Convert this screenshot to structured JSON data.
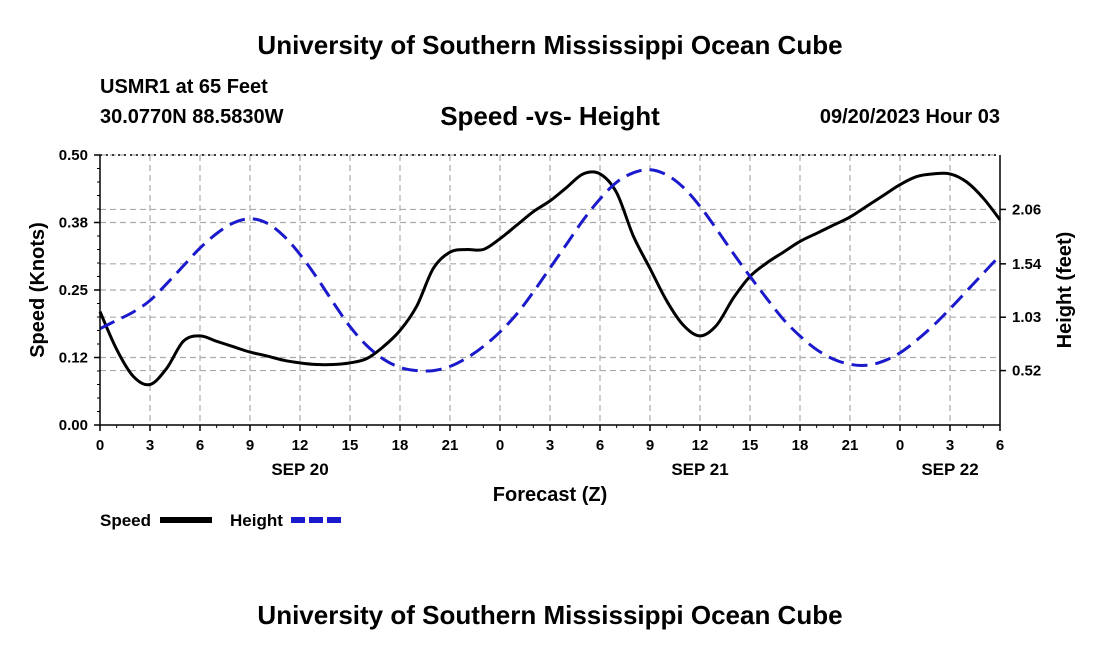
{
  "header": {
    "title": "University of Southern Mississippi Ocean Cube",
    "station": "USMR1 at 65 Feet",
    "coords": "30.0770N  88.5830W",
    "chart_title": "Speed -vs- Height",
    "datetime": "09/20/2023 Hour 03"
  },
  "footer": {
    "title": "University of Southern Mississippi Ocean Cube"
  },
  "colors": {
    "speed": "#000000",
    "height": "#1a1acc",
    "grid": "#aaaaaa"
  },
  "chart_data": {
    "type": "line",
    "title": "Speed -vs- Height",
    "xlabel": "Forecast (Z)",
    "ylabel_left": "Speed (Knots)",
    "ylabel_right": "Height (feet)",
    "xlim": [
      0,
      54
    ],
    "x_ticks": [
      0,
      3,
      6,
      9,
      12,
      15,
      18,
      21,
      24,
      27,
      30,
      33,
      36,
      39,
      42,
      45,
      48,
      51,
      54
    ],
    "x_tick_labels": [
      "0",
      "3",
      "6",
      "9",
      "12",
      "15",
      "18",
      "21",
      "0",
      "3",
      "6",
      "9",
      "12",
      "15",
      "18",
      "21",
      "0",
      "3",
      "6"
    ],
    "date_labels": [
      {
        "x": 12,
        "label": "SEP 20"
      },
      {
        "x": 36,
        "label": "SEP 21"
      },
      {
        "x": 51,
        "label": "SEP 22"
      }
    ],
    "ylim_left": [
      0,
      0.5
    ],
    "y_ticks_left": [
      0.0,
      0.125,
      0.25,
      0.375,
      0.5
    ],
    "y_tick_labels_left": [
      "0.00",
      "0.12",
      "0.25",
      "0.38",
      "0.50"
    ],
    "ylim_right": [
      0.0,
      2.58
    ],
    "y_ticks_right": [
      0.52,
      1.03,
      1.54,
      2.06
    ],
    "y_tick_labels_right": [
      "0.52",
      "1.03",
      "1.54",
      "2.06"
    ],
    "series": [
      {
        "name": "Speed",
        "axis": "left",
        "style": "solid",
        "x": [
          0,
          1,
          2,
          3,
          4,
          5,
          6,
          7,
          8,
          9,
          10,
          11,
          12,
          13,
          14,
          15,
          16,
          17,
          18,
          19,
          20,
          21,
          22,
          23,
          24,
          25,
          26,
          27,
          28,
          29,
          30,
          31,
          32,
          33,
          34,
          35,
          36,
          37,
          38,
          39,
          40,
          41,
          42,
          43,
          44,
          45,
          46,
          47,
          48,
          49,
          50,
          51,
          52,
          53,
          54
        ],
        "values": [
          0.21,
          0.14,
          0.09,
          0.075,
          0.105,
          0.155,
          0.165,
          0.155,
          0.145,
          0.135,
          0.128,
          0.12,
          0.115,
          0.112,
          0.112,
          0.115,
          0.123,
          0.145,
          0.175,
          0.22,
          0.29,
          0.32,
          0.325,
          0.325,
          0.345,
          0.37,
          0.395,
          0.415,
          0.44,
          0.465,
          0.465,
          0.43,
          0.35,
          0.29,
          0.23,
          0.185,
          0.165,
          0.185,
          0.235,
          0.275,
          0.3,
          0.32,
          0.34,
          0.355,
          0.37,
          0.385,
          0.405,
          0.425,
          0.445,
          0.46,
          0.465,
          0.465,
          0.45,
          0.42,
          0.38
        ]
      },
      {
        "name": "Height",
        "axis": "right",
        "style": "dashed",
        "x": [
          0,
          1,
          2,
          3,
          4,
          5,
          6,
          7,
          8,
          9,
          10,
          11,
          12,
          13,
          14,
          15,
          16,
          17,
          18,
          19,
          20,
          21,
          22,
          23,
          24,
          25,
          26,
          27,
          28,
          29,
          30,
          31,
          32,
          33,
          34,
          35,
          36,
          37,
          38,
          39,
          40,
          41,
          42,
          43,
          44,
          45,
          46,
          47,
          48,
          49,
          50,
          51,
          52,
          53,
          54
        ],
        "values": [
          0.92,
          1.0,
          1.08,
          1.19,
          1.35,
          1.52,
          1.69,
          1.83,
          1.93,
          1.97,
          1.93,
          1.81,
          1.63,
          1.41,
          1.17,
          0.94,
          0.76,
          0.63,
          0.55,
          0.52,
          0.52,
          0.56,
          0.64,
          0.75,
          0.89,
          1.06,
          1.27,
          1.5,
          1.73,
          1.96,
          2.16,
          2.32,
          2.41,
          2.44,
          2.39,
          2.27,
          2.09,
          1.87,
          1.64,
          1.42,
          1.21,
          1.01,
          0.85,
          0.72,
          0.63,
          0.58,
          0.57,
          0.61,
          0.69,
          0.81,
          0.95,
          1.11,
          1.28,
          1.45,
          1.62
        ]
      }
    ],
    "legend": [
      {
        "label": "Speed",
        "color": "#000000",
        "style": "solid"
      },
      {
        "label": "Height",
        "color": "#1a1acc",
        "style": "dashed"
      }
    ],
    "grid": true
  }
}
